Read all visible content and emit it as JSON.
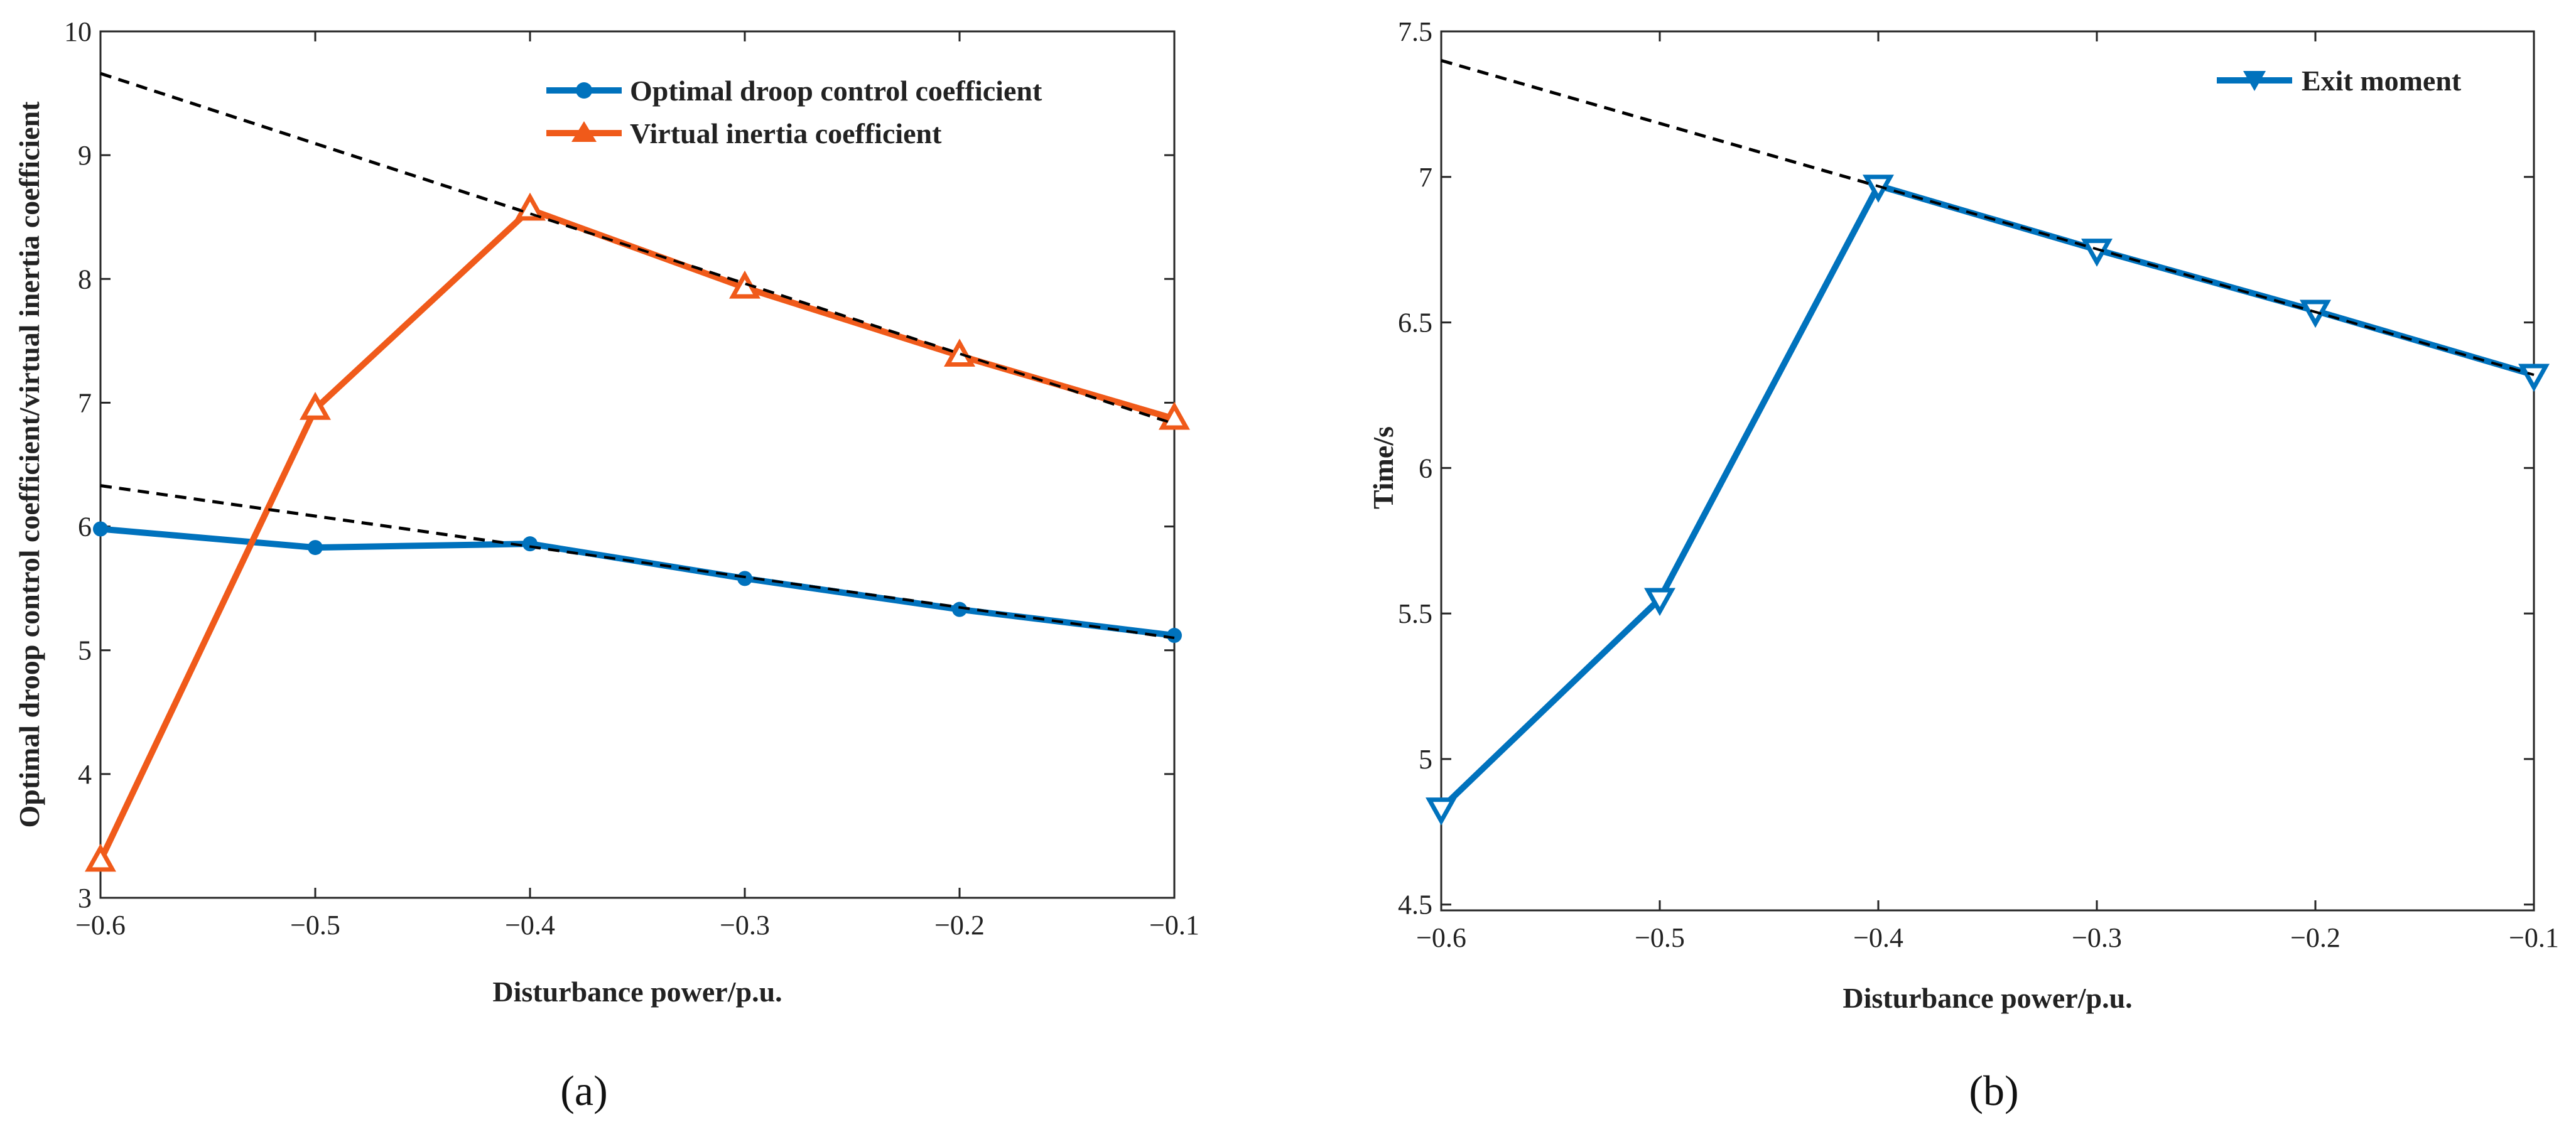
{
  "chart_data": [
    {
      "type": "line",
      "panel": "(a)",
      "xlabel": "Disturbance power/p.u.",
      "ylabel": "Optimal droop control coefficient/virtual inertia coefficient",
      "xlim": [
        -0.6,
        -0.1
      ],
      "ylim": [
        3,
        10
      ],
      "x_ticks": [
        "−0.6",
        "−0.5",
        "−0.4",
        "−0.3",
        "−0.2",
        "−0.1"
      ],
      "y_ticks": [
        "3",
        "4",
        "5",
        "6",
        "7",
        "8",
        "9",
        "10"
      ],
      "legend_position": "top-right",
      "series": [
        {
          "name": "Optimal droop control coefficient",
          "color": "#0072BD",
          "marker": "circle",
          "x": [
            -0.6,
            -0.5,
            -0.4,
            -0.3,
            -0.2,
            -0.1
          ],
          "values": [
            5.98,
            5.83,
            5.86,
            5.58,
            5.33,
            5.12
          ]
        },
        {
          "name": "Virtual inertia coefficient",
          "color": "#F05A1A",
          "marker": "triangle-up",
          "x": [
            -0.6,
            -0.5,
            -0.4,
            -0.3,
            -0.2,
            -0.1
          ],
          "values": [
            3.3,
            6.95,
            8.56,
            7.93,
            7.38,
            6.87
          ]
        }
      ],
      "trend_lines": [
        {
          "style": "dashed",
          "color": "#000000",
          "x": [
            -0.6,
            -0.1
          ],
          "values": [
            6.33,
            5.1
          ]
        },
        {
          "style": "dashed",
          "color": "#000000",
          "x": [
            -0.6,
            -0.1
          ],
          "values": [
            9.66,
            6.83
          ]
        }
      ]
    },
    {
      "type": "line",
      "panel": "(b)",
      "xlabel": "Disturbance power/p.u.",
      "ylabel": "Time/s",
      "xlim": [
        -0.6,
        -0.1
      ],
      "ylim": [
        4.48,
        7.5
      ],
      "x_ticks": [
        "−0.6",
        "−0.5",
        "−0.4",
        "−0.3",
        "−0.2",
        "−0.1"
      ],
      "y_ticks": [
        "4.5",
        "5",
        "5.5",
        "6",
        "6.5",
        "7",
        "7.5"
      ],
      "y_tick_values": [
        4.5,
        5,
        5.5,
        6,
        6.5,
        7,
        7.5
      ],
      "legend_position": "top-right",
      "series": [
        {
          "name": "Exit moment",
          "color": "#0072BD",
          "marker": "triangle-down",
          "x": [
            -0.6,
            -0.5,
            -0.4,
            -0.3,
            -0.2,
            -0.1
          ],
          "values": [
            4.83,
            5.55,
            6.97,
            6.75,
            6.54,
            6.32
          ]
        }
      ],
      "trend_lines": [
        {
          "style": "dashed",
          "color": "#000000",
          "x": [
            -0.6,
            -0.1
          ],
          "values": [
            7.4,
            6.32
          ]
        }
      ]
    }
  ]
}
